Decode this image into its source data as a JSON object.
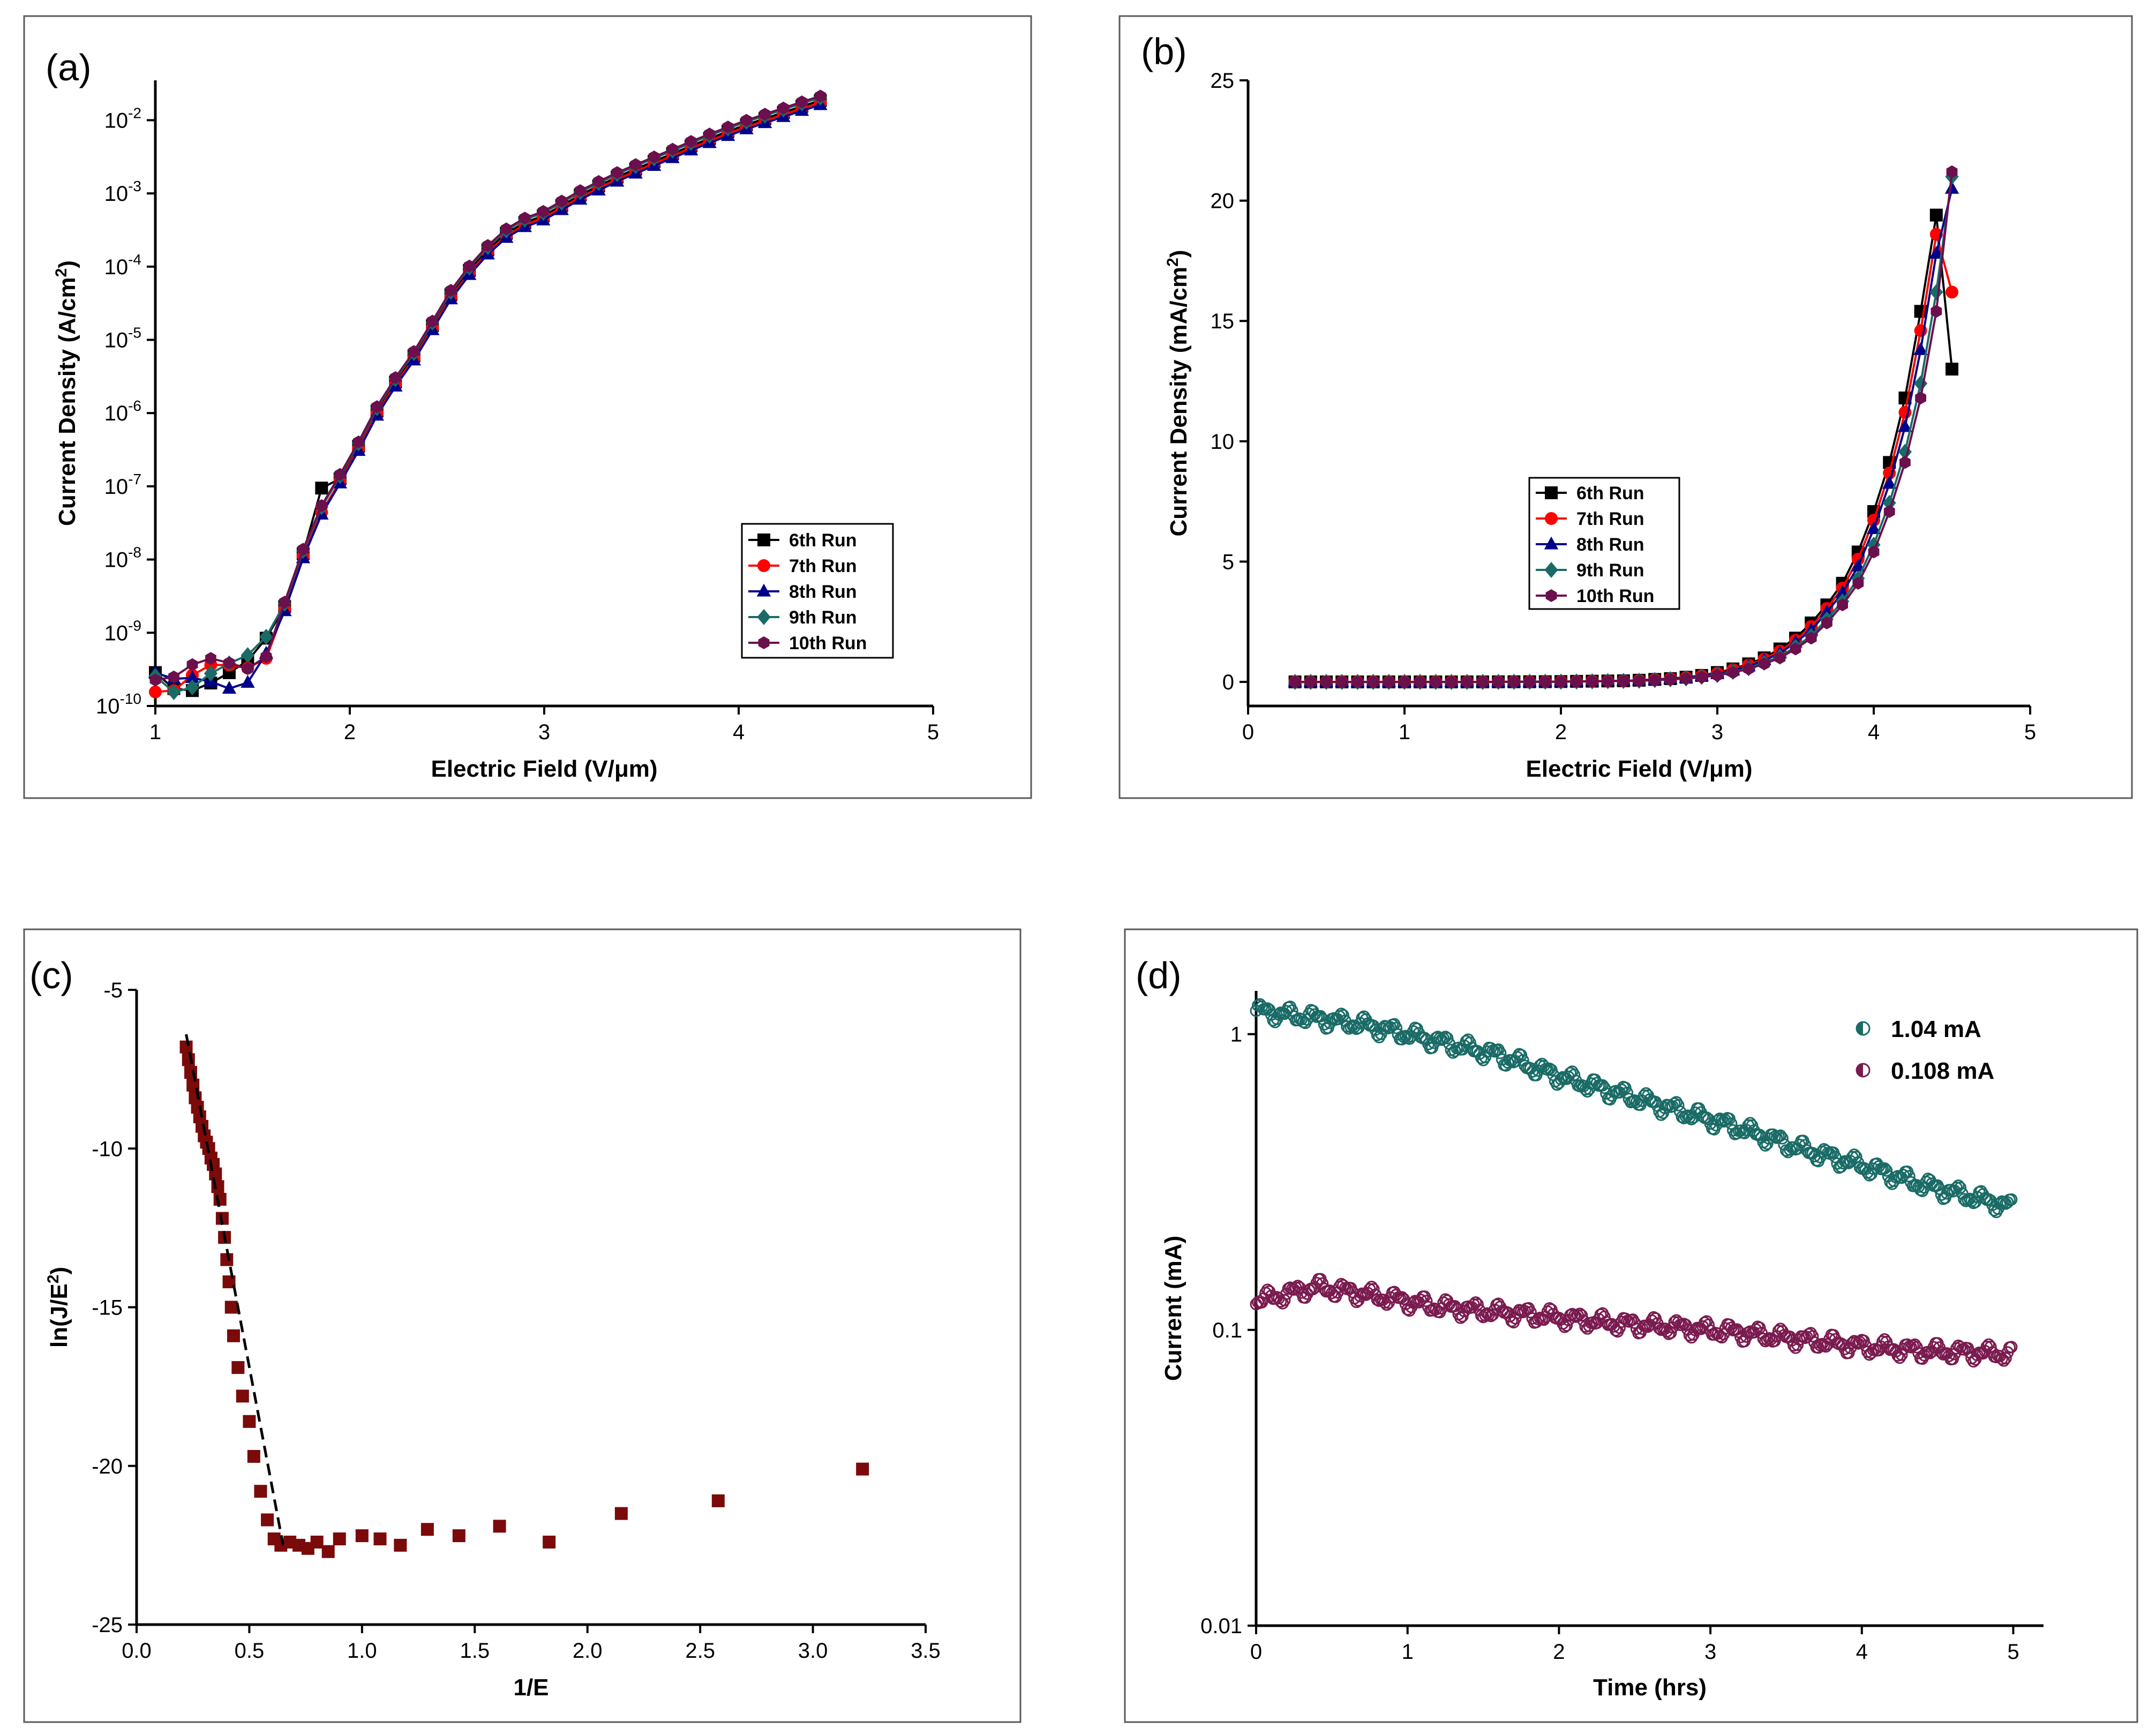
{
  "chart_data": [
    {
      "panel": "(a)",
      "type": "line",
      "scale_y": "log",
      "xlabel": "Electric Field (V/μm)",
      "ylabel": "Current Density (A/cm",
      "ylabel_sup": "2",
      "ylabel_end": ")",
      "xlim": [
        1,
        5
      ],
      "ylim": [
        1e-10,
        0.035
      ],
      "xticks": [
        1,
        2,
        3,
        4,
        5
      ],
      "xtick_labels": [
        "1",
        "2",
        "3",
        "4",
        "5"
      ],
      "yticks": [
        1e-10,
        1e-09,
        1e-08,
        1e-07,
        1e-06,
        1e-05,
        0.0001,
        0.001,
        0.01
      ],
      "ytick_exps": [
        "-10",
        "-9",
        "-8",
        "-7",
        "-6",
        "-5",
        "-4",
        "-3",
        "-2"
      ],
      "ytick_base": "10",
      "legend_position": "lower-right",
      "series": [
        {
          "name": "6th Run",
          "color": "#000000",
          "marker": "square",
          "offset": 0.0,
          "x": [
            1.05,
            1.15,
            1.25,
            1.4,
            1.55,
            1.85,
            2.0,
            2.4,
            3.0,
            4.0,
            4.5
          ],
          "y": [
            1.5e-10,
            1.8e-10,
            2e-10,
            1.3e-10,
            3e-10,
            5e-08,
            1.5e-07,
            1.3e-05,
            0.0004,
            0.0055,
            0.02
          ]
        },
        {
          "name": "7th Run",
          "color": "#ff0000",
          "marker": "circle",
          "offset": -0.03
        },
        {
          "name": "8th Run",
          "color": "#00008b",
          "marker": "triangle",
          "offset": -0.06
        },
        {
          "name": "9th Run",
          "color": "#1a6b66",
          "marker": "diamond",
          "offset": 0.04
        },
        {
          "name": "10th Run",
          "color": "#6b0f4d",
          "marker": "hexagon",
          "offset": 0.06
        }
      ],
      "curve_x": [
        1.0,
        1.1,
        1.2,
        1.3,
        1.4,
        1.5,
        1.6,
        1.7,
        1.8,
        1.9,
        2.0,
        2.1,
        2.2,
        2.3,
        2.4,
        2.5,
        2.6,
        2.7,
        2.8,
        2.9,
        3.0,
        3.2,
        3.4,
        3.6,
        3.8,
        4.0,
        4.2,
        4.4,
        4.5
      ],
      "curve_y": [
        2.5e-10,
        2e-10,
        2.5e-10,
        3e-10,
        3e-10,
        3.5e-10,
        8e-10,
        4e-09,
        2.5e-08,
        8e-08,
        2e-07,
        7e-07,
        2e-06,
        4.5e-06,
        1.2e-05,
        3.5e-05,
        8e-05,
        0.00016,
        0.00028,
        0.0004,
        0.0005,
        0.001,
        0.0018,
        0.003,
        0.005,
        0.008,
        0.012,
        0.018,
        0.021
      ]
    },
    {
      "panel": "(b)",
      "type": "line",
      "xlabel": "Electric Field (V/μm)",
      "ylabel": "Current Density (mA/cm",
      "ylabel_sup": "2",
      "ylabel_end": ")",
      "xlim": [
        0,
        5
      ],
      "ylim": [
        -1,
        25
      ],
      "xticks": [
        0,
        1,
        2,
        3,
        4,
        5
      ],
      "xtick_labels": [
        "0",
        "1",
        "2",
        "3",
        "4",
        "5"
      ],
      "yticks": [
        0,
        5,
        10,
        15,
        20,
        25
      ],
      "ytick_labels": [
        "0",
        "5",
        "10",
        "15",
        "20",
        "25"
      ],
      "legend_position": "center-left",
      "series": [
        {
          "name": "6th Run",
          "color": "#000000",
          "marker": "square",
          "shift": 0.06,
          "final": 13.0
        },
        {
          "name": "7th Run",
          "color": "#ff0000",
          "marker": "circle",
          "shift": 0.04,
          "final": 16.2
        },
        {
          "name": "8th Run",
          "color": "#00008b",
          "marker": "triangle",
          "shift": 0.02,
          "final": 20.5
        },
        {
          "name": "9th Run",
          "color": "#1a6b66",
          "marker": "diamond",
          "shift": -0.02,
          "final": 21.0
        },
        {
          "name": "10th Run",
          "color": "#6b0f4d",
          "marker": "hexagon",
          "shift": -0.04,
          "final": 21.2
        }
      ],
      "curve_x": [
        0.3,
        0.5,
        1.0,
        1.5,
        2.0,
        2.5,
        2.8,
        3.0,
        3.2,
        3.4,
        3.6,
        3.8,
        3.9,
        4.0,
        4.1,
        4.2,
        4.3,
        4.4,
        4.5
      ],
      "curve_y": [
        0,
        0,
        0,
        0,
        0.01,
        0.05,
        0.15,
        0.3,
        0.6,
        1.1,
        2.0,
        3.5,
        4.5,
        6.0,
        7.8,
        10.0,
        13.0,
        17.0,
        21.0
      ]
    },
    {
      "panel": "(c)",
      "type": "scatter",
      "xlabel": "1/E",
      "ylabel": "ln(J/E",
      "ylabel_sup": "2",
      "ylabel_end": ")",
      "xlim": [
        0,
        3.5
      ],
      "ylim": [
        -25,
        -5
      ],
      "xticks": [
        0,
        0.5,
        1,
        1.5,
        2,
        2.5,
        3,
        3.5
      ],
      "xtick_labels": [
        "0.0",
        "0.5",
        "1.0",
        "1.5",
        "2.0",
        "2.5",
        "3.0",
        "3.5"
      ],
      "yticks": [
        -25,
        -20,
        -15,
        -10,
        -5
      ],
      "ytick_labels": [
        "-25",
        "-20",
        "-15",
        "-10",
        "-5"
      ],
      "color": "#7b0a0a",
      "fit_color": "#000000",
      "fit_x": [
        0.22,
        0.65
      ],
      "fit_y": [
        -6.4,
        -22.5
      ],
      "points_x": [
        0.22,
        0.23,
        0.24,
        0.25,
        0.26,
        0.27,
        0.28,
        0.29,
        0.3,
        0.31,
        0.32,
        0.33,
        0.34,
        0.35,
        0.36,
        0.37,
        0.38,
        0.39,
        0.4,
        0.41,
        0.42,
        0.43,
        0.45,
        0.47,
        0.5,
        0.52,
        0.55,
        0.58,
        0.61,
        0.64,
        0.68,
        0.72,
        0.76,
        0.8,
        0.85,
        0.9,
        1.0,
        1.08,
        1.17,
        1.29,
        1.43,
        1.61,
        1.83,
        2.15,
        2.58,
        3.22
      ],
      "points_y": [
        -6.8,
        -7.2,
        -7.6,
        -8.0,
        -8.4,
        -8.7,
        -9.0,
        -9.3,
        -9.6,
        -9.8,
        -10.0,
        -10.3,
        -10.5,
        -10.8,
        -11.2,
        -11.6,
        -12.2,
        -12.8,
        -13.5,
        -14.2,
        -15.0,
        -15.9,
        -16.9,
        -17.8,
        -18.6,
        -19.7,
        -20.8,
        -21.7,
        -22.3,
        -22.5,
        -22.4,
        -22.5,
        -22.6,
        -22.4,
        -22.7,
        -22.3,
        -22.2,
        -22.3,
        -22.5,
        -22.0,
        -22.2,
        -21.9,
        -22.4,
        -21.5,
        -21.1,
        -20.1
      ]
    },
    {
      "panel": "(d)",
      "type": "scatter",
      "scale_y": "log",
      "xlabel": "Time (hrs)",
      "ylabel": "Current (mA)",
      "xlim": [
        0,
        5.2
      ],
      "ylim": [
        0.01,
        1.4
      ],
      "xticks": [
        0,
        1,
        2,
        3,
        4,
        5
      ],
      "xtick_labels": [
        "0",
        "1",
        "2",
        "3",
        "4",
        "5"
      ],
      "yticks": [
        0.01,
        0.1,
        1
      ],
      "ytick_labels": [
        "0.01",
        "0.1",
        "1"
      ],
      "legend_position": "top-right",
      "series": [
        {
          "name": "1.04 mA",
          "color": "#1a6b66",
          "x": [
            0,
            0.3,
            0.7,
            1.0,
            1.3,
            1.6,
            2.0,
            2.4,
            2.8,
            3.2,
            3.6,
            4.0,
            4.4,
            5.0
          ],
          "y": [
            1.2,
            1.15,
            1.08,
            1.0,
            0.92,
            0.85,
            0.72,
            0.63,
            0.55,
            0.48,
            0.41,
            0.36,
            0.31,
            0.26
          ]
        },
        {
          "name": "0.108 mA",
          "color": "#7a1b4f",
          "x": [
            0,
            0.4,
            0.8,
            1.2,
            1.6,
            2.0,
            2.4,
            2.8,
            3.2,
            3.6,
            4.0,
            4.4,
            5.0
          ],
          "y": [
            0.125,
            0.14,
            0.13,
            0.12,
            0.115,
            0.11,
            0.105,
            0.102,
            0.098,
            0.093,
            0.088,
            0.085,
            0.083
          ]
        }
      ]
    }
  ]
}
